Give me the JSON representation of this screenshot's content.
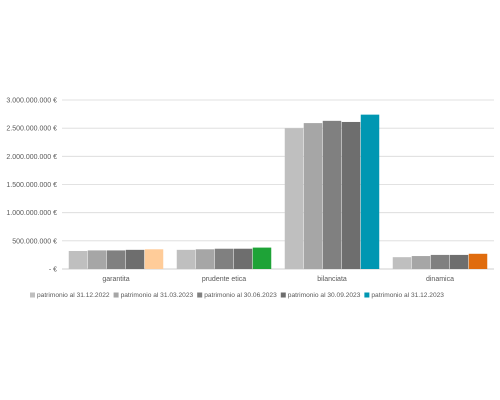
{
  "chart_data": {
    "type": "bar",
    "title": "",
    "xlabel": "",
    "ylabel": "",
    "ylim": [
      0,
      3000000000
    ],
    "yticks": [
      {
        "value": 0,
        "label": "-   €"
      },
      {
        "value": 500000000,
        "label": "500.000.000 €"
      },
      {
        "value": 1000000000,
        "label": "1.000.000.000 €"
      },
      {
        "value": 1500000000,
        "label": "1.500.000.000 €"
      },
      {
        "value": 2000000000,
        "label": "2.000.000.000 €"
      },
      {
        "value": 2500000000,
        "label": "2.500.000.000 €"
      },
      {
        "value": 3000000000,
        "label": "3.000.000.000 €"
      }
    ],
    "grid": true,
    "legend_position": "bottom",
    "categories": [
      "garantita",
      "prudente etica",
      "bilanciata",
      "dinamica"
    ],
    "series": [
      {
        "name": "patrimonio al 31.12.2022",
        "color": "#bfbfbf",
        "values": [
          320000000,
          340000000,
          2500000000,
          210000000
        ]
      },
      {
        "name": "patrimonio al 31.03.2023",
        "color": "#a6a6a6",
        "values": [
          330000000,
          350000000,
          2590000000,
          230000000
        ]
      },
      {
        "name": "patrimonio al 30.06.2023",
        "color": "#808080",
        "values": [
          330000000,
          360000000,
          2630000000,
          250000000
        ]
      },
      {
        "name": "patrimonio al 30.09.2023",
        "color": "#6e6e6e",
        "values": [
          340000000,
          360000000,
          2610000000,
          250000000
        ]
      },
      {
        "name": "patrimonio al 31.12.2023",
        "color": "#0097b2",
        "values": [
          350000000,
          380000000,
          2740000000,
          270000000
        ]
      }
    ],
    "last_series_colors": [
      "#ffcc99",
      "#1ea337",
      "#0097b2",
      "#e06c0e"
    ]
  }
}
